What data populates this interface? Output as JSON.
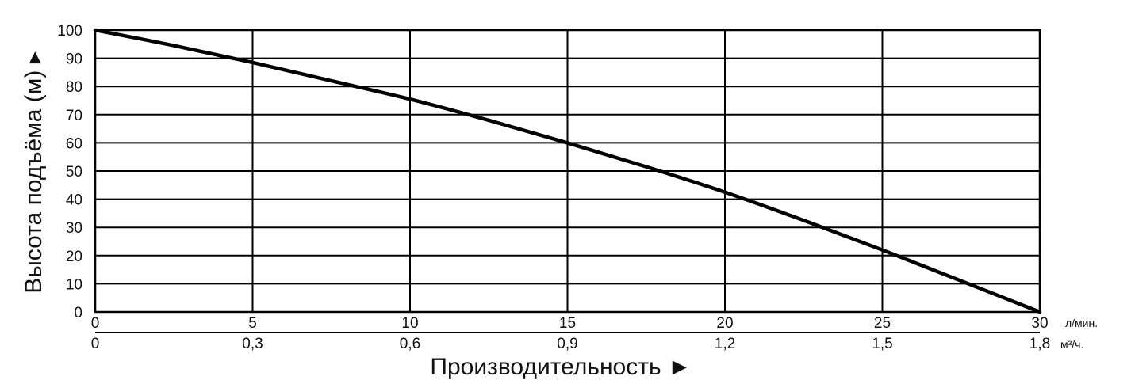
{
  "chart_data": {
    "type": "line",
    "ylabel": "Высота подъёма (м) ▸",
    "xlabel": "Производительность ►",
    "x_unit_primary": "л/мин.",
    "x_unit_secondary": "м³/ч.",
    "x_ticks_primary": [
      "0",
      "5",
      "10",
      "15",
      "20",
      "25",
      "30"
    ],
    "x_ticks_secondary": [
      "0",
      "0,3",
      "0,6",
      "0,9",
      "1,2",
      "1,5",
      "1,8"
    ],
    "y_ticks": [
      "0",
      "10",
      "20",
      "30",
      "40",
      "50",
      "60",
      "70",
      "80",
      "90",
      "100"
    ],
    "xlim": [
      0,
      30
    ],
    "ylim": [
      0,
      100
    ],
    "grid": true,
    "colors": {
      "line": "#000000",
      "grid": "#000000"
    },
    "series": [
      {
        "x": [
          0,
          2.5,
          5,
          7.5,
          10,
          12.5,
          15,
          17.5,
          20,
          22.5,
          25,
          27.5,
          30
        ],
        "values": [
          100,
          94.5,
          88.5,
          82,
          75.5,
          68,
          60,
          51.5,
          42.5,
          32.5,
          22,
          11,
          0
        ]
      }
    ]
  }
}
